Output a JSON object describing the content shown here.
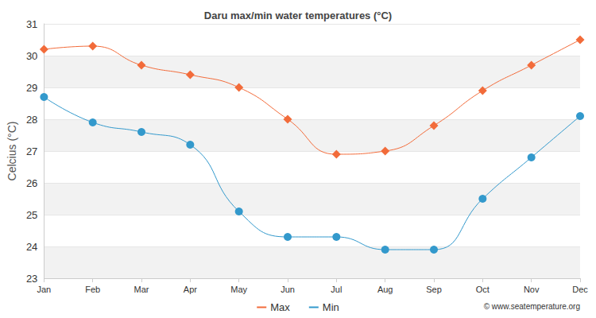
{
  "chart_data": {
    "type": "line",
    "title": "Daru max/min water temperatures (°C)",
    "y_label": "Celcius (°C)",
    "annotations": [
      "© www.seatemperature.org"
    ],
    "categories": [
      "Jan",
      "Feb",
      "Mar",
      "Apr",
      "May",
      "Jun",
      "Jul",
      "Aug",
      "Sep",
      "Oct",
      "Nov",
      "Dec"
    ],
    "series": [
      {
        "name": "Max",
        "color": "#f26b3a",
        "marker": "diamond",
        "line_style": "solid",
        "values": [
          30.2,
          30.3,
          29.7,
          29.4,
          29.0,
          28.0,
          26.9,
          27.0,
          27.8,
          28.9,
          29.7,
          30.5
        ]
      },
      {
        "name": "Min",
        "color": "#3399cc",
        "marker": "circle",
        "line_style": "solid",
        "values": [
          28.7,
          27.9,
          27.6,
          27.2,
          25.1,
          24.3,
          24.3,
          23.9,
          23.9,
          25.5,
          26.8,
          28.1
        ]
      }
    ],
    "ylim": [
      23,
      31
    ],
    "yticks": [
      23,
      24,
      25,
      26,
      27,
      28,
      29,
      30,
      31
    ],
    "grid": true,
    "legend": "bottom"
  }
}
